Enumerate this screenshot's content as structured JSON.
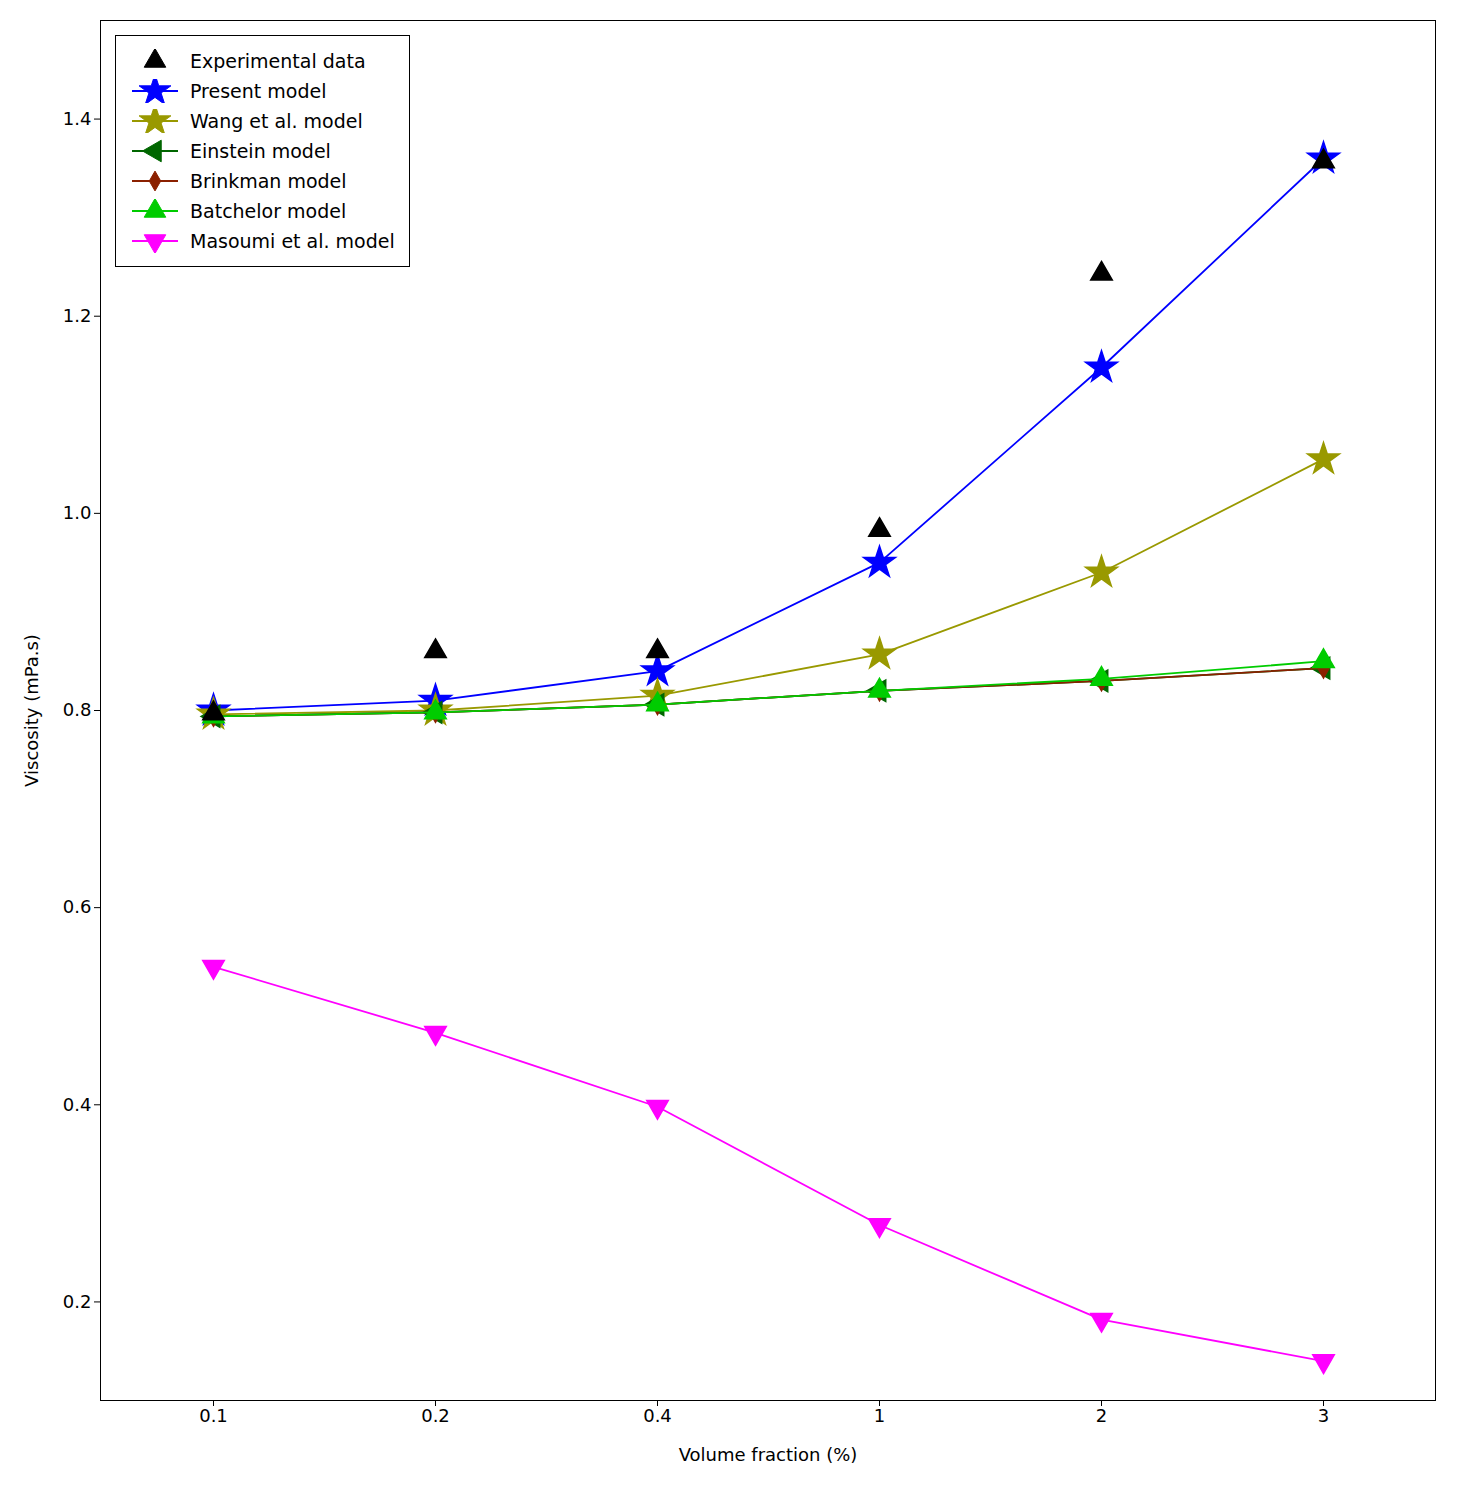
{
  "chart_data": {
    "type": "line",
    "x_label": "Volume fraction (%)",
    "y_label": "Viscosity (mPa.s)",
    "categories": [
      "0.1",
      "0.2",
      "0.4",
      "1",
      "2",
      "3"
    ],
    "ylim": [
      0.1,
      1.5
    ],
    "yticks": [
      0.2,
      0.4,
      0.6,
      0.8,
      {
        "value": 1.0,
        "label": "1.0"
      },
      1.2,
      1.4
    ],
    "grid": false,
    "legend": "upper left",
    "series": [
      {
        "name": "Experimental data",
        "type": "scatter",
        "color": "#000000",
        "marker": "triangle-up",
        "values": [
          0.797,
          0.86,
          0.86,
          0.983,
          1.243,
          1.357
        ]
      },
      {
        "name": "Present model",
        "type": "line",
        "color": "#0000FF",
        "marker": "star",
        "values": [
          0.8,
          0.81,
          0.84,
          0.95,
          1.148,
          1.36
        ]
      },
      {
        "name": "Wang et al. model",
        "type": "line",
        "color": "#999900",
        "marker": "star",
        "values": [
          0.796,
          0.8,
          0.815,
          0.857,
          0.94,
          1.055
        ]
      },
      {
        "name": "Einstein model",
        "type": "line",
        "color": "#006600",
        "marker": "triangle-left",
        "values": [
          0.794,
          0.798,
          0.806,
          0.82,
          0.83,
          0.843
        ]
      },
      {
        "name": "Brinkman model",
        "type": "line",
        "color": "#8B2000",
        "marker": "diamond",
        "values": [
          0.794,
          0.798,
          0.806,
          0.82,
          0.83,
          0.843
        ]
      },
      {
        "name": "Batchelor model",
        "type": "line",
        "color": "#00CC00",
        "marker": "triangle-up",
        "values": [
          0.794,
          0.798,
          0.806,
          0.82,
          0.832,
          0.85
        ]
      },
      {
        "name": "Masoumi et al. model",
        "type": "line",
        "color": "#FF00FF",
        "marker": "triangle-down",
        "values": [
          0.54,
          0.473,
          0.398,
          0.278,
          0.182,
          0.14
        ]
      }
    ]
  }
}
